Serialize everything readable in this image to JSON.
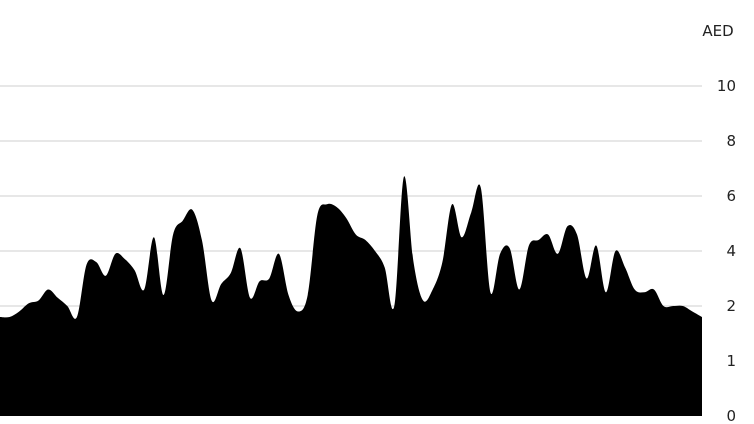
{
  "chart_data": {
    "type": "area",
    "title": "",
    "xlabel": "",
    "ylabel": "",
    "unit": "AED",
    "grid": true,
    "y_ticks": [
      "0",
      "1",
      "2",
      "4",
      "6",
      "8",
      "10"
    ],
    "colors": {
      "area": "#000000",
      "grid": "#cfcfcf",
      "text": "#222222",
      "background": "#ffffff"
    },
    "series": [
      {
        "values": [
          1.8,
          1.8,
          1.9,
          2.1,
          2.2,
          2.6,
          2.3,
          2.0,
          1.8,
          3.5,
          3.6,
          3.1,
          3.9,
          3.7,
          3.3,
          2.6,
          4.5,
          2.4,
          4.6,
          5.1,
          5.5,
          4.4,
          2.2,
          2.8,
          3.2,
          4.1,
          2.3,
          2.9,
          3.0,
          3.9,
          2.4,
          1.9,
          2.4,
          5.3,
          5.7,
          5.6,
          5.2,
          4.6,
          4.4,
          4.0,
          3.4,
          2.0,
          6.7,
          3.6,
          2.2,
          2.6,
          3.6,
          5.7,
          4.5,
          5.4,
          6.3,
          2.5,
          3.9,
          4.1,
          2.6,
          4.2,
          4.4,
          4.6,
          3.9,
          4.9,
          4.6,
          3.0,
          4.2,
          2.5,
          4.0,
          3.4,
          2.6,
          2.5,
          2.6,
          2.0,
          2.0,
          2.0,
          1.9,
          1.8
        ]
      }
    ]
  }
}
